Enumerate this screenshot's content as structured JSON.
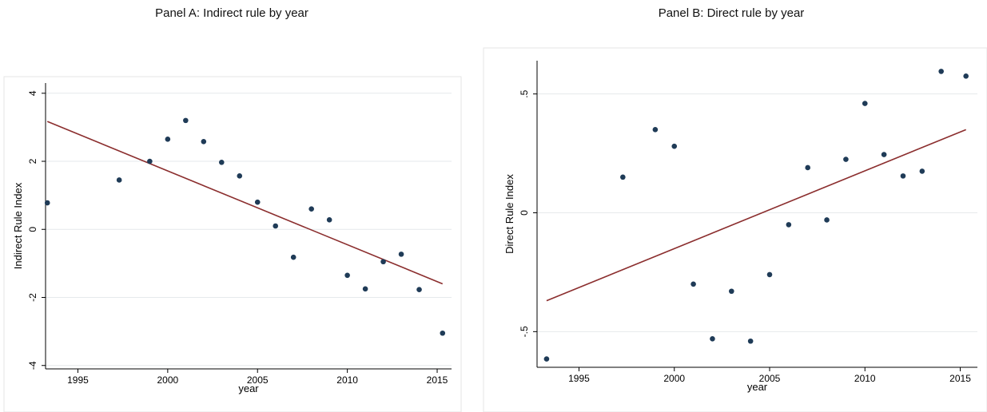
{
  "panels": {
    "a_title": "Panel A: Indirect rule by year",
    "b_title": "Panel B: Direct rule by year"
  },
  "colors": {
    "point": "#1f3b57",
    "fit_line": "#8b2e2e",
    "grid": "#e6e9ec",
    "frame": "#e6e6e6"
  },
  "chart_data": [
    {
      "type": "scatter",
      "title": "Panel A: Indirect rule by year",
      "xlabel": "year",
      "ylabel": "Indirect Rule Index",
      "xlim": [
        1993.2,
        2015.8
      ],
      "ylim": [
        -4.1,
        4.3
      ],
      "x_ticks": [
        1995,
        2000,
        2005,
        2010,
        2015
      ],
      "y_ticks": [
        -4,
        -2,
        0,
        2,
        4
      ],
      "y_tick_labels": [
        "-4",
        "-2",
        "0",
        "2",
        "4"
      ],
      "grid": true,
      "points": {
        "x": [
          1993.3,
          1997.3,
          1999,
          2000,
          2001,
          2002,
          2003,
          2004,
          2005,
          2006,
          2007,
          2008,
          2009,
          2010,
          2011,
          2012,
          2013,
          2014,
          2015.3
        ],
        "y": [
          0.78,
          1.45,
          2.0,
          2.65,
          3.2,
          2.58,
          1.97,
          1.57,
          0.8,
          0.1,
          -0.82,
          0.6,
          0.28,
          -1.35,
          -1.75,
          -0.95,
          -0.73,
          -1.77,
          -3.05
        ]
      },
      "fit_line": {
        "x": [
          1993.3,
          2015.3
        ],
        "y": [
          3.17,
          -1.6
        ]
      }
    },
    {
      "type": "scatter",
      "title": "Panel B: Direct rule by year",
      "xlabel": "year",
      "ylabel": "Direct Rule Index",
      "xlim": [
        1992.8,
        2015.9
      ],
      "ylim": [
        -0.65,
        0.64
      ],
      "x_ticks": [
        1995,
        2000,
        2005,
        2010,
        2015
      ],
      "y_ticks": [
        -0.5,
        0,
        0.5
      ],
      "y_tick_labels": [
        "-.5",
        "0",
        ".5"
      ],
      "grid": true,
      "points": {
        "x": [
          1993.3,
          1997.3,
          1999,
          2000,
          2001,
          2002,
          2003,
          2004,
          2005,
          2006,
          2007,
          2008,
          2009,
          2010,
          2011,
          2012,
          2013,
          2014,
          2015.3
        ],
        "y": [
          -0.615,
          0.15,
          0.35,
          0.28,
          -0.3,
          -0.53,
          -0.33,
          -0.54,
          -0.26,
          -0.05,
          0.19,
          -0.03,
          0.225,
          0.46,
          0.245,
          0.155,
          0.175,
          0.595,
          0.575
        ]
      },
      "fit_line": {
        "x": [
          1993.3,
          2015.3
        ],
        "y": [
          -0.37,
          0.35
        ]
      }
    }
  ]
}
